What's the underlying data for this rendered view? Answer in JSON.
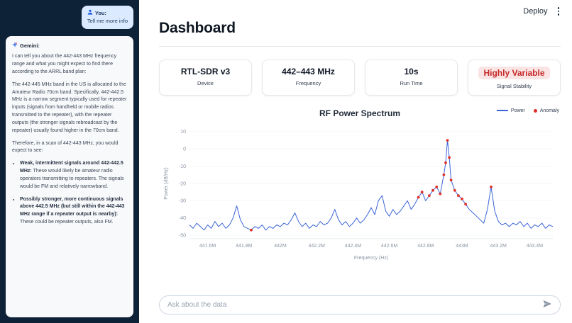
{
  "sidebar": {
    "user_message": {
      "sender": "You:",
      "text": "Tell me more info"
    },
    "gemini": {
      "sender": "Gemini:",
      "paragraphs": [
        "I can tell you about the 442-443 MHz frequency range and what you might expect to find there according to the ARRL band plan:",
        "The 442-445 MHz band in the US is allocated to the Amateur Radio 70cm band. Specifically, 442-442.5 MHz is a narrow segment typically used for repeater inputs (signals from handheld or mobile radios transmitted to the repeater), with the repeater outputs (the stronger signals rebroadcast by the repeater) usually found higher in the 70cm band.",
        "Therefore, in a scan of 442-443 MHz, you would expect to see:"
      ],
      "bullets": [
        {
          "title": "Weak, intermittent signals around 442-442.5 MHz:",
          "body": " These would likely be amateur radio operators transmitting to repeaters. The signals would be FM and relatively narrowband."
        },
        {
          "title": "Possibly stronger, more continuous signals above 442.5 MHz (but still within the 442-443 MHz range if a repeater output is nearby):",
          "body": " These could be repeater outputs, also FM."
        }
      ]
    }
  },
  "header": {
    "title": "Dashboard",
    "deploy_label": "Deploy"
  },
  "stats": [
    {
      "value": "RTL-SDR v3",
      "label": "Device"
    },
    {
      "value": "442–443 MHz",
      "label": "Frequency"
    },
    {
      "value": "10s",
      "label": "Run Time"
    },
    {
      "value": "Highly Variable",
      "label": "Signal Stability"
    }
  ],
  "colors": {
    "sidebar_bg": "#0d2137",
    "user_bubble_bg": "#dbeafe",
    "highlight_bg": "#fbe4e4",
    "highlight_text": "#c62828",
    "power_line": "#3a64d8",
    "anomaly_dot": "#e03028"
  },
  "chart_data": {
    "type": "line",
    "title": "RF Power Spectrum",
    "xlabel": "Frequency (Hz)",
    "ylabel": "Power (dB/Hz)",
    "xlim": [
      441.5,
      443.5
    ],
    "ylim": [
      -52,
      12
    ],
    "grid": false,
    "legend_position": "top-right",
    "y_ticks": [
      10,
      0,
      -10,
      -20,
      -30,
      -40,
      -50
    ],
    "x_ticks": [
      {
        "value": 441.6,
        "label": "441.6M"
      },
      {
        "value": 441.8,
        "label": "441.8M"
      },
      {
        "value": 442.0,
        "label": "442M"
      },
      {
        "value": 442.2,
        "label": "442.2M"
      },
      {
        "value": 442.4,
        "label": "442.4M"
      },
      {
        "value": 442.6,
        "label": "442.6M"
      },
      {
        "value": 442.8,
        "label": "442.8M"
      },
      {
        "value": 443.0,
        "label": "443M"
      },
      {
        "value": 443.2,
        "label": "443.2M"
      },
      {
        "value": 443.4,
        "label": "443.4M"
      }
    ],
    "x_unit": "MHz",
    "series": [
      {
        "name": "Power",
        "type": "line",
        "color": "#3a64d8",
        "points": [
          [
            441.5,
            -44
          ],
          [
            441.52,
            -46
          ],
          [
            441.54,
            -43
          ],
          [
            441.56,
            -45
          ],
          [
            441.58,
            -47
          ],
          [
            441.6,
            -44
          ],
          [
            441.62,
            -46
          ],
          [
            441.64,
            -42
          ],
          [
            441.66,
            -45
          ],
          [
            441.68,
            -43
          ],
          [
            441.7,
            -46
          ],
          [
            441.72,
            -44
          ],
          [
            441.74,
            -40
          ],
          [
            441.76,
            -33
          ],
          [
            441.78,
            -41
          ],
          [
            441.8,
            -45
          ],
          [
            441.82,
            -46
          ],
          [
            441.84,
            -47
          ],
          [
            441.86,
            -45
          ],
          [
            441.88,
            -46
          ],
          [
            441.9,
            -44
          ],
          [
            441.92,
            -47
          ],
          [
            441.94,
            -45
          ],
          [
            441.96,
            -46
          ],
          [
            441.98,
            -44
          ],
          [
            442.0,
            -45
          ],
          [
            442.02,
            -43
          ],
          [
            442.04,
            -44
          ],
          [
            442.06,
            -41
          ],
          [
            442.08,
            -37
          ],
          [
            442.1,
            -42
          ],
          [
            442.12,
            -45
          ],
          [
            442.14,
            -43
          ],
          [
            442.16,
            -46
          ],
          [
            442.18,
            -44
          ],
          [
            442.2,
            -45
          ],
          [
            442.22,
            -42
          ],
          [
            442.24,
            -44
          ],
          [
            442.26,
            -43
          ],
          [
            442.28,
            -40
          ],
          [
            442.3,
            -35
          ],
          [
            442.32,
            -41
          ],
          [
            442.34,
            -44
          ],
          [
            442.36,
            -42
          ],
          [
            442.38,
            -45
          ],
          [
            442.4,
            -43
          ],
          [
            442.42,
            -40
          ],
          [
            442.44,
            -43
          ],
          [
            442.46,
            -41
          ],
          [
            442.48,
            -38
          ],
          [
            442.5,
            -34
          ],
          [
            442.52,
            -38
          ],
          [
            442.54,
            -30
          ],
          [
            442.56,
            -27
          ],
          [
            442.58,
            -36
          ],
          [
            442.6,
            -39
          ],
          [
            442.62,
            -35
          ],
          [
            442.64,
            -38
          ],
          [
            442.66,
            -36
          ],
          [
            442.68,
            -33
          ],
          [
            442.7,
            -30
          ],
          [
            442.72,
            -35
          ],
          [
            442.74,
            -32
          ],
          [
            442.76,
            -28
          ],
          [
            442.78,
            -25
          ],
          [
            442.8,
            -30
          ],
          [
            442.82,
            -27
          ],
          [
            442.84,
            -24
          ],
          [
            442.86,
            -22
          ],
          [
            442.88,
            -26
          ],
          [
            442.9,
            -15
          ],
          [
            442.91,
            -8
          ],
          [
            442.92,
            5
          ],
          [
            442.93,
            -5
          ],
          [
            442.94,
            -18
          ],
          [
            442.96,
            -24
          ],
          [
            442.98,
            -27
          ],
          [
            443.0,
            -29
          ],
          [
            443.02,
            -32
          ],
          [
            443.04,
            -35
          ],
          [
            443.06,
            -37
          ],
          [
            443.08,
            -39
          ],
          [
            443.1,
            -41
          ],
          [
            443.12,
            -43
          ],
          [
            443.14,
            -35
          ],
          [
            443.16,
            -22
          ],
          [
            443.18,
            -36
          ],
          [
            443.2,
            -42
          ],
          [
            443.22,
            -44
          ],
          [
            443.24,
            -43
          ],
          [
            443.26,
            -45
          ],
          [
            443.28,
            -43
          ],
          [
            443.3,
            -44
          ],
          [
            443.32,
            -42
          ],
          [
            443.34,
            -45
          ],
          [
            443.36,
            -43
          ],
          [
            443.38,
            -46
          ],
          [
            443.4,
            -44
          ],
          [
            443.42,
            -45
          ],
          [
            443.44,
            -43
          ],
          [
            443.46,
            -46
          ],
          [
            443.48,
            -44
          ],
          [
            443.5,
            -45
          ]
        ]
      }
    ],
    "anomalies": {
      "name": "Anomaly",
      "type": "scatter",
      "color": "#e03028",
      "points": [
        [
          441.84,
          -47
        ],
        [
          442.76,
          -28
        ],
        [
          442.78,
          -25
        ],
        [
          442.82,
          -27
        ],
        [
          442.84,
          -24
        ],
        [
          442.86,
          -22
        ],
        [
          442.88,
          -26
        ],
        [
          442.9,
          -15
        ],
        [
          442.91,
          -8
        ],
        [
          442.92,
          5
        ],
        [
          442.93,
          -5
        ],
        [
          442.94,
          -18
        ],
        [
          442.96,
          -24
        ],
        [
          442.98,
          -27
        ],
        [
          443.0,
          -29
        ],
        [
          443.02,
          -32
        ],
        [
          443.16,
          -22
        ]
      ]
    }
  },
  "chat_input": {
    "placeholder": "Ask about the data",
    "send_icon": "paper-plane"
  }
}
